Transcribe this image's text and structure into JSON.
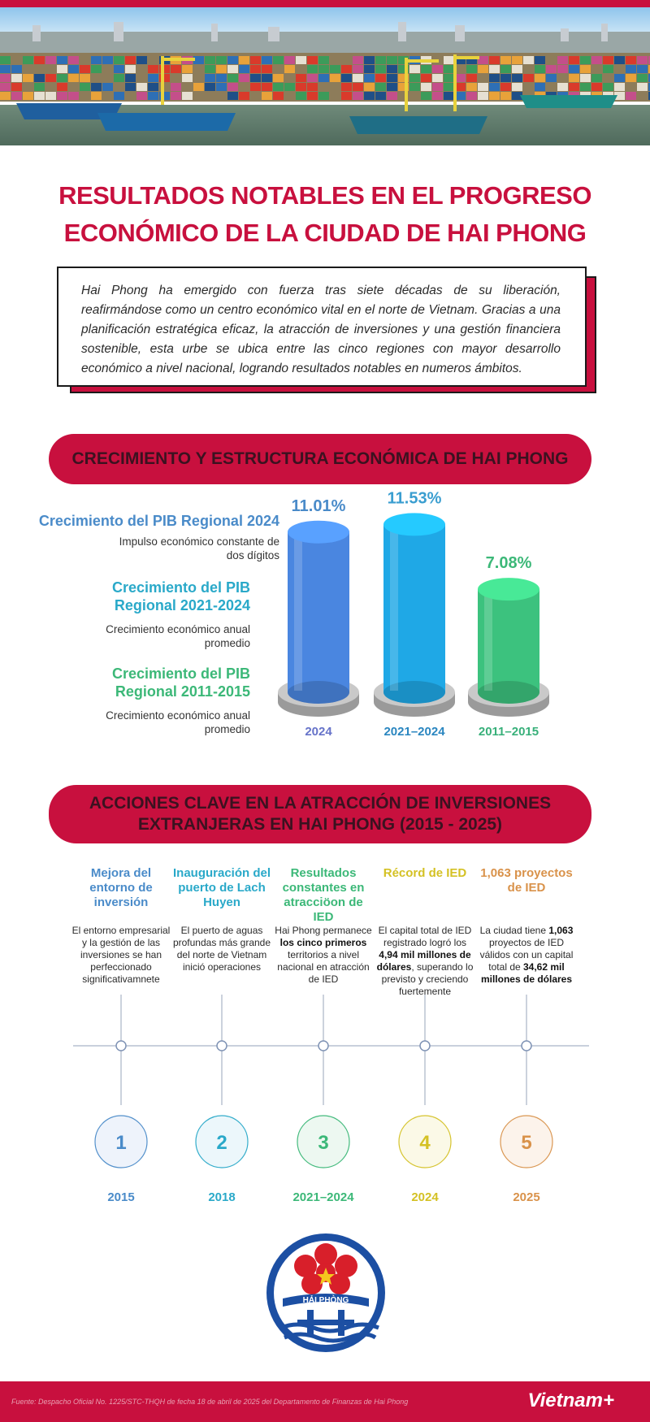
{
  "title": {
    "line1": "RESULTADOS NOTABLES EN EL PROGRESO",
    "line2": "ECONÓMICO DE LA CIUDAD DE HAI PHONG"
  },
  "intro": "Hai Phong ha emergido con fuerza tras siete décadas de su liberación, reafirmándose como un centro económico vital en el norte de Vietnam. Gracias a una planificación estratégica eficaz, la atracción de inversiones y una gestión financiera sostenible, esta urbe se ubica entre las cinco regiones con mayor desarrollo económico a nivel nacional, logrando resultados notables en numeros ámbitos.",
  "section1": {
    "title": "CRECIMIENTO Y ESTRUCTURA ECONÓMICA DE HAI PHONG"
  },
  "growth_labels": [
    {
      "heading": "Crecimiento del PIB Regional 2024",
      "sub": "Impulso económico constante de dos dígitos",
      "color": "#4a8bc9"
    },
    {
      "heading": "Crecimiento del PIB Regional 2021-2024",
      "sub": "Crecimiento económico anual promedio",
      "color": "#2aa9c9"
    },
    {
      "heading": "Crecimiento del PIB Regional 2011-2015",
      "sub": "Crecimiento económico anual promedio",
      "color": "#3cb878"
    }
  ],
  "chart_data": {
    "type": "bar",
    "categories": [
      "2024",
      "2021–2024",
      "2011–2015"
    ],
    "values": [
      11.01,
      11.53,
      7.08
    ],
    "value_labels": [
      "11.01%",
      "11.53%",
      "7.08%"
    ],
    "colors": [
      "#4a86e0",
      "#1fa8e6",
      "#3cc27e"
    ],
    "label_colors": [
      "#4a8bc9",
      "#3a9ed0",
      "#3cb878"
    ],
    "category_colors": [
      "#6673c9",
      "#2a86c0",
      "#38b07a"
    ],
    "ylim": [
      0,
      12
    ]
  },
  "section2": {
    "line1": "ACCIONES CLAVE EN LA ATRACCIÓN DE INVERSIONES",
    "line2": "EXTRANJERAS EN HAI PHONG (2015 - 2025)"
  },
  "timeline": [
    {
      "heading": "Mejora del entorno de inversión",
      "desc_parts": [
        "El entorno empresarial y la gestión de las inversiones se han perfeccionado significativamnete"
      ],
      "number": "1",
      "year": "2015",
      "color": "#4a8bc9",
      "fill": "#eef3fb"
    },
    {
      "heading": "Inauguración del puerto de Lach Huyen",
      "desc_parts": [
        "El puerto de aguas profundas más grande del norte de Vietnam inició operaciones"
      ],
      "number": "2",
      "year": "2018",
      "color": "#2aa9c9",
      "fill": "#ecf7fb"
    },
    {
      "heading": "Resultados constantes en atracciöon de IED",
      "desc_parts": [
        "Hai Phong permanece ",
        "los cinco primeros",
        " territorios a nivel nacional en atracción de IED"
      ],
      "number": "3",
      "year": "2021–2024",
      "color": "#3cb878",
      "fill": "#edf8f1"
    },
    {
      "heading": "Récord de IED",
      "desc_parts": [
        "El capital total de IED registrado logró los ",
        "4,94 mil millones de dólares",
        ", superando lo previsto y creciendo fuertemente"
      ],
      "number": "4",
      "year": "2024",
      "color": "#d4c124",
      "fill": "#fbf9e6"
    },
    {
      "heading": "1,063 proyectos de IED",
      "desc_parts": [
        "La ciudad tiene ",
        "1,063",
        " proyectos de IED válidos con un capital total de ",
        "34,62 mil millones de dólares"
      ],
      "number": "5",
      "year": "2025",
      "color": "#d9924a",
      "fill": "#fcf3ea"
    }
  ],
  "logo": {
    "text": "HẢI PHÒNG"
  },
  "footer": {
    "source": "Fuente: Despacho Oficial No. 1225/STC-THQH de fecha 18 de abril de 2025 del Departamento de Finanzas de Hai Phong",
    "brand": "Vietnam+"
  }
}
